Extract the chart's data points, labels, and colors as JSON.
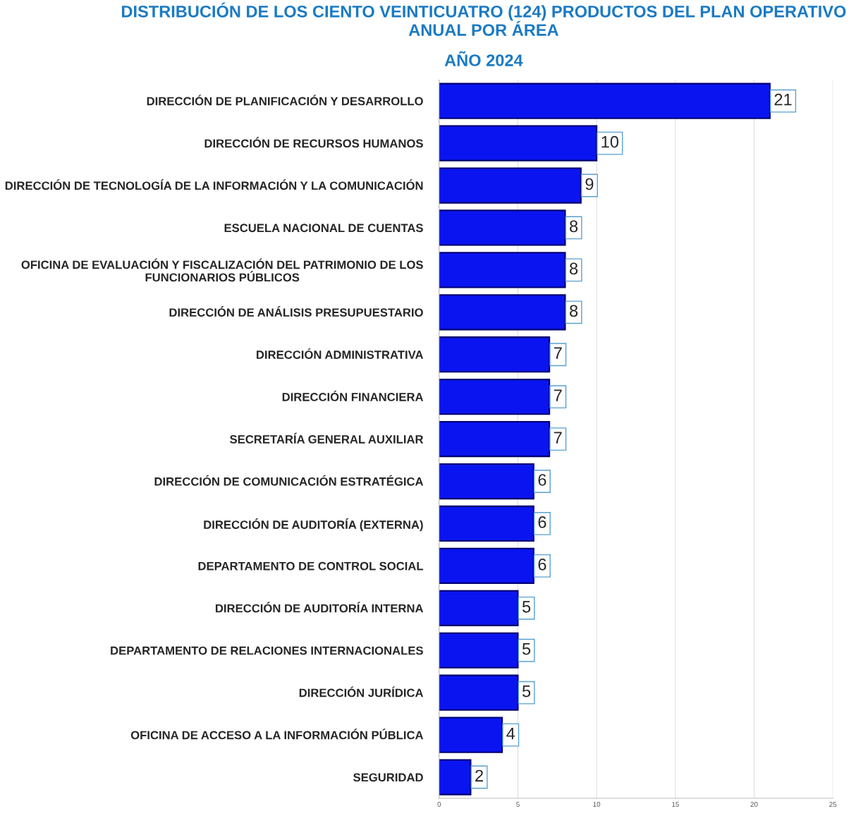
{
  "chart_data": {
    "type": "bar",
    "orientation": "horizontal",
    "title": "DISTRIBUCIÓN DE LOS CIENTO VEINTICUATRO (124) PRODUCTOS DEL PLAN OPERATIVO\nANUAL POR ÁREA",
    "subtitle": "AÑO 2024",
    "categories": [
      "DIRECCIÓN DE PLANIFICACIÓN Y DESARROLLO",
      "DIRECCIÓN DE RECURSOS HUMANOS",
      "DIRECCIÓN DE TECNOLOGÍA DE LA INFORMACIÓN Y LA COMUNICACIÓN",
      "ESCUELA NACIONAL DE CUENTAS",
      "OFICINA DE EVALUACIÓN Y FISCALIZACIÓN DEL PATRIMONIO DE LOS\nFUNCIONARIOS PÚBLICOS",
      "DIRECCIÓN DE ANÁLISIS PRESUPUESTARIO",
      "DIRECCIÓN ADMINISTRATIVA",
      "DIRECCIÓN FINANCIERA",
      "SECRETARÍA GENERAL AUXILIAR",
      "DIRECCIÓN DE COMUNICACIÓN ESTRATÉGICA",
      "DIRECCIÓN DE AUDITORÍA (EXTERNA)",
      "DEPARTAMENTO DE CONTROL SOCIAL",
      "DIRECCIÓN DE AUDITORÍA INTERNA",
      "DEPARTAMENTO DE RELACIONES INTERNACIONALES",
      "DIRECCIÓN JURÍDICA",
      "OFICINA DE ACCESO A LA INFORMACIÓN PÚBLICA",
      "SEGURIDAD"
    ],
    "values": [
      21,
      10,
      9,
      8,
      8,
      8,
      7,
      7,
      7,
      6,
      6,
      6,
      5,
      5,
      5,
      4,
      2
    ],
    "color": "#0a14f0",
    "xlim": [
      0,
      25
    ],
    "xticks": [
      0,
      5,
      10,
      15,
      20,
      25
    ],
    "grid": "x",
    "data_labels": true
  }
}
